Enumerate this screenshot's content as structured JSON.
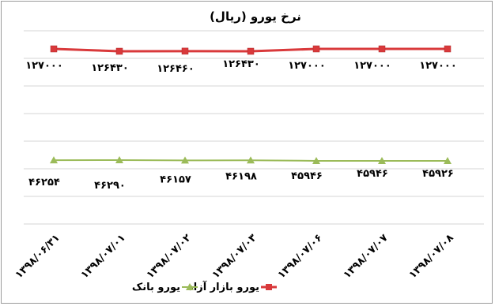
{
  "chart_data": {
    "type": "line",
    "title": "نرخ یورو (ریال)",
    "categories": [
      "۱۳۹۸/۰۶/۳۱",
      "۱۳۹۸/۰۷/۰۱",
      "۱۳۹۸/۰۷/۰۲",
      "۱۳۹۸/۰۷/۰۳",
      "۱۳۹۸/۰۷/۰۶",
      "۱۳۹۸/۰۷/۰۷",
      "۱۳۹۸/۰۷/۰۸"
    ],
    "series": [
      {
        "name": "یورو بازار آزاد",
        "color": "#d9393b",
        "marker": "square",
        "values": [
          127000,
          126430,
          126460,
          126430,
          127000,
          127000,
          127000
        ],
        "labels": [
          "۱۲۷۰۰۰",
          "۱۲۶۴۳۰",
          "۱۲۶۴۶۰",
          "۱۲۶۴۳۰",
          "۱۲۷۰۰۰",
          "۱۲۷۰۰۰",
          "۱۲۷۰۰۰"
        ]
      },
      {
        "name": "یورو بانک",
        "color": "#9bbb59",
        "marker": "triangle",
        "values": [
          46254,
          46290,
          46157,
          46198,
          45946,
          45946,
          45926
        ],
        "labels": [
          "۴۶۲۵۴",
          "۴۶۲۹۰",
          "۴۶۱۵۷",
          "۴۶۱۹۸",
          "۴۵۹۴۶",
          "۴۵۹۴۶",
          "۴۵۹۲۶"
        ]
      }
    ],
    "ylim": [
      0,
      140000
    ],
    "grid": true,
    "legend": "bottom"
  }
}
